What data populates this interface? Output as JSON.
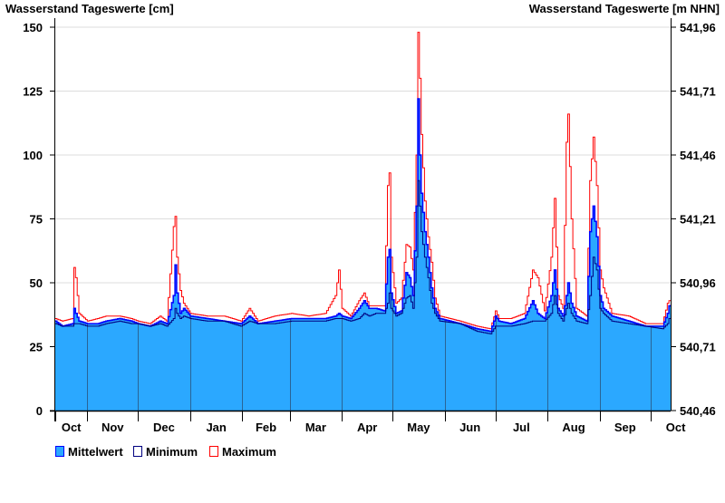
{
  "chart_data": {
    "type": "area",
    "title_left": "Wasserstand Tageswerte [cm]",
    "title_right": "Wasserstand Tageswerte [m NHN]",
    "ylim": [
      0,
      150
    ],
    "yticks_left": [
      "0",
      "25",
      "50",
      "75",
      "100",
      "125",
      "150"
    ],
    "yticks_right": [
      "540,46",
      "540,71",
      "540,96",
      "541,21",
      "541,46",
      "541,71",
      "541,96"
    ],
    "total_days": 365,
    "months": [
      {
        "label": "Oct",
        "start_day": 0
      },
      {
        "label": "Nov",
        "start_day": 19
      },
      {
        "label": "Dec",
        "start_day": 49
      },
      {
        "label": "Jan",
        "start_day": 80
      },
      {
        "label": "Feb",
        "start_day": 111
      },
      {
        "label": "Mar",
        "start_day": 139
      },
      {
        "label": "Apr",
        "start_day": 170
      },
      {
        "label": "May",
        "start_day": 200
      },
      {
        "label": "Jun",
        "start_day": 231
      },
      {
        "label": "Jul",
        "start_day": 261
      },
      {
        "label": "Aug",
        "start_day": 292
      },
      {
        "label": "Sep",
        "start_day": 323
      },
      {
        "label": "Oct",
        "start_day": 353
      }
    ],
    "legend": [
      {
        "name": "Mittelwert",
        "color": "#2ba8ff",
        "border": "#0000ff"
      },
      {
        "name": "Minimum",
        "color": "#ffffff",
        "border": "#000080"
      },
      {
        "name": "Maximum",
        "color": "#ffffff",
        "border": "#ff0000"
      }
    ],
    "legend_placement": "bottom-left",
    "colors": {
      "mean_fill": "#2ba8ff",
      "mean_line": "#0000ff",
      "min_line": "#000080",
      "max_line": "#ff0000",
      "grid": "#dddddd",
      "month_line": "#2a6496"
    },
    "series_keyframes_columns": [
      "day",
      "mean",
      "min",
      "max"
    ],
    "series_keyframes": [
      [
        0,
        35,
        34,
        36
      ],
      [
        4,
        33,
        33,
        35
      ],
      [
        10,
        34,
        33,
        36
      ],
      [
        11,
        40,
        34,
        56
      ],
      [
        12,
        38,
        34,
        52
      ],
      [
        14,
        35,
        34,
        38
      ],
      [
        19,
        34,
        33,
        35
      ],
      [
        25,
        34,
        33,
        36
      ],
      [
        30,
        35,
        34,
        37
      ],
      [
        38,
        36,
        35,
        37
      ],
      [
        45,
        35,
        34,
        36
      ],
      [
        49,
        34,
        34,
        35
      ],
      [
        56,
        33,
        33,
        34
      ],
      [
        62,
        35,
        34,
        37
      ],
      [
        66,
        34,
        33,
        35
      ],
      [
        70,
        45,
        36,
        72
      ],
      [
        71,
        57,
        40,
        76
      ],
      [
        72,
        46,
        38,
        60
      ],
      [
        74,
        38,
        36,
        47
      ],
      [
        76,
        40,
        37,
        42
      ],
      [
        80,
        37,
        36,
        38
      ],
      [
        90,
        36,
        35,
        37
      ],
      [
        100,
        35,
        35,
        37
      ],
      [
        110,
        34,
        33,
        35
      ],
      [
        115,
        37,
        35,
        40
      ],
      [
        120,
        34,
        34,
        35
      ],
      [
        130,
        35,
        34,
        37
      ],
      [
        140,
        36,
        35,
        38
      ],
      [
        150,
        36,
        35,
        37
      ],
      [
        160,
        36,
        35,
        38
      ],
      [
        166,
        37,
        36,
        45
      ],
      [
        168,
        38,
        36,
        55
      ],
      [
        170,
        37,
        36,
        40
      ],
      [
        175,
        36,
        35,
        37
      ],
      [
        180,
        40,
        36,
        43
      ],
      [
        183,
        43,
        38,
        46
      ],
      [
        186,
        40,
        37,
        41
      ],
      [
        190,
        40,
        38,
        41
      ],
      [
        195,
        39,
        38,
        41
      ],
      [
        197,
        60,
        42,
        88
      ],
      [
        198,
        63,
        46,
        93
      ],
      [
        199,
        46,
        40,
        60
      ],
      [
        202,
        38,
        37,
        42
      ],
      [
        205,
        39,
        38,
        44
      ],
      [
        208,
        54,
        44,
        65
      ],
      [
        210,
        52,
        45,
        64
      ],
      [
        212,
        45,
        40,
        55
      ],
      [
        214,
        80,
        60,
        100
      ],
      [
        215,
        122,
        90,
        148
      ],
      [
        216,
        100,
        80,
        130
      ],
      [
        217,
        85,
        70,
        108
      ],
      [
        219,
        70,
        60,
        82
      ],
      [
        221,
        60,
        52,
        68
      ],
      [
        223,
        48,
        42,
        58
      ],
      [
        225,
        40,
        38,
        44
      ],
      [
        228,
        36,
        35,
        37
      ],
      [
        240,
        34,
        34,
        35
      ],
      [
        250,
        32,
        31,
        33
      ],
      [
        258,
        31,
        30,
        32
      ],
      [
        261,
        37,
        33,
        39
      ],
      [
        263,
        35,
        33,
        36
      ],
      [
        270,
        34,
        33,
        36
      ],
      [
        278,
        36,
        34,
        38
      ],
      [
        283,
        43,
        35,
        55
      ],
      [
        286,
        38,
        35,
        52
      ],
      [
        290,
        36,
        35,
        39
      ],
      [
        294,
        45,
        38,
        60
      ],
      [
        296,
        55,
        45,
        83
      ],
      [
        298,
        40,
        38,
        45
      ],
      [
        301,
        37,
        35,
        40
      ],
      [
        303,
        45,
        40,
        105
      ],
      [
        304,
        50,
        42,
        116
      ],
      [
        306,
        42,
        38,
        75
      ],
      [
        309,
        37,
        35,
        40
      ],
      [
        315,
        35,
        34,
        37
      ],
      [
        317,
        70,
        45,
        90
      ],
      [
        319,
        80,
        60,
        107
      ],
      [
        321,
        68,
        55,
        88
      ],
      [
        323,
        45,
        40,
        55
      ],
      [
        325,
        40,
        38,
        48
      ],
      [
        330,
        37,
        35,
        38
      ],
      [
        340,
        35,
        34,
        37
      ],
      [
        350,
        33,
        33,
        34
      ],
      [
        360,
        33,
        32,
        34
      ],
      [
        363,
        38,
        34,
        42
      ],
      [
        364,
        41,
        36,
        43
      ]
    ]
  }
}
